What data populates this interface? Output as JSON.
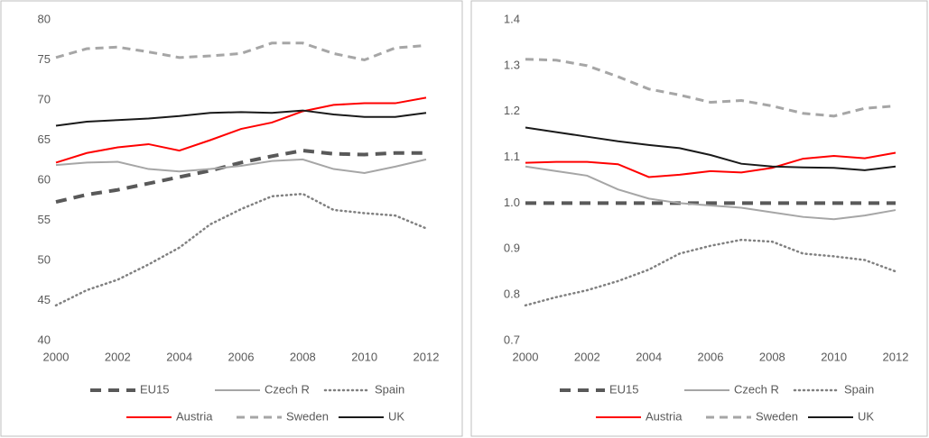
{
  "chart_data": [
    {
      "type": "line",
      "x": [
        2000,
        2001,
        2002,
        2003,
        2004,
        2005,
        2006,
        2007,
        2008,
        2009,
        2010,
        2011,
        2012
      ],
      "xlim": [
        2000,
        2012
      ],
      "xticks": [
        2000,
        2002,
        2004,
        2006,
        2008,
        2010,
        2012
      ],
      "ylim": [
        40,
        80
      ],
      "yticks": [
        40,
        45,
        50,
        55,
        60,
        65,
        70,
        75,
        80
      ],
      "grid": false,
      "series": [
        {
          "name": "EU15",
          "color": "#595959",
          "dash": "dashed",
          "width": 4,
          "values": [
            57.3,
            58.2,
            58.8,
            59.6,
            60.4,
            61.2,
            62.2,
            63.0,
            63.7,
            63.3,
            63.2,
            63.4,
            63.4
          ]
        },
        {
          "name": "Czech R",
          "color": "#a6a6a6",
          "dash": "solid",
          "width": 2,
          "values": [
            61.9,
            62.2,
            62.3,
            61.4,
            61.1,
            61.4,
            61.8,
            62.4,
            62.6,
            61.4,
            60.9,
            61.7,
            62.6
          ]
        },
        {
          "name": "Spain",
          "color": "#808080",
          "dash": "dotted",
          "width": 2.5,
          "values": [
            44.4,
            46.3,
            47.6,
            49.5,
            51.6,
            54.5,
            56.4,
            58.0,
            58.3,
            56.3,
            55.9,
            55.6,
            54.0
          ]
        },
        {
          "name": "Austria",
          "color": "#ff0000",
          "dash": "solid",
          "width": 2,
          "values": [
            62.2,
            63.4,
            64.1,
            64.5,
            63.7,
            65.0,
            66.4,
            67.2,
            68.6,
            69.4,
            69.6,
            69.6,
            70.3
          ]
        },
        {
          "name": "Sweden",
          "color": "#a6a6a6",
          "dash": "dashed",
          "width": 3,
          "values": [
            75.3,
            76.4,
            76.6,
            76.0,
            75.3,
            75.5,
            75.8,
            77.1,
            77.1,
            75.8,
            75.0,
            76.5,
            76.8
          ]
        },
        {
          "name": "UK",
          "color": "#1a1a1a",
          "dash": "solid",
          "width": 2,
          "values": [
            66.8,
            67.3,
            67.5,
            67.7,
            68.0,
            68.4,
            68.5,
            68.4,
            68.7,
            68.2,
            67.9,
            67.9,
            68.4
          ]
        }
      ]
    },
    {
      "type": "line",
      "x": [
        2000,
        2001,
        2002,
        2003,
        2004,
        2005,
        2006,
        2007,
        2008,
        2009,
        2010,
        2011,
        2012
      ],
      "xlim": [
        2000,
        2012
      ],
      "xticks": [
        2000,
        2002,
        2004,
        2006,
        2008,
        2010,
        2012
      ],
      "ylim": [
        0.7,
        1.4
      ],
      "yticks": [
        0.7,
        0.8,
        0.9,
        {
          "value": 1,
          "label": "1.0"
        },
        1.1,
        1.2,
        1.3,
        1.4
      ],
      "grid": false,
      "series": [
        {
          "name": "EU15",
          "color": "#595959",
          "dash": "dashed",
          "width": 4,
          "values": [
            1,
            1,
            1,
            1,
            1,
            1,
            1,
            1,
            1,
            1,
            1,
            1,
            1
          ]
        },
        {
          "name": "Czech R",
          "color": "#a6a6a6",
          "dash": "solid",
          "width": 2,
          "values": [
            1.08,
            1.07,
            1.06,
            1.03,
            1.01,
            1.0,
            0.995,
            0.99,
            0.98,
            0.97,
            0.965,
            0.973,
            0.985
          ]
        },
        {
          "name": "Spain",
          "color": "#808080",
          "dash": "dotted",
          "width": 2.5,
          "values": [
            0.777,
            0.795,
            0.81,
            0.83,
            0.855,
            0.89,
            0.907,
            0.92,
            0.916,
            0.89,
            0.884,
            0.876,
            0.851
          ]
        },
        {
          "name": "Austria",
          "color": "#ff0000",
          "dash": "solid",
          "width": 2,
          "values": [
            1.088,
            1.09,
            1.09,
            1.085,
            1.057,
            1.062,
            1.07,
            1.067,
            1.077,
            1.097,
            1.103,
            1.098,
            1.11
          ]
        },
        {
          "name": "Sweden",
          "color": "#a6a6a6",
          "dash": "dashed",
          "width": 3,
          "values": [
            1.314,
            1.312,
            1.3,
            1.276,
            1.249,
            1.236,
            1.22,
            1.224,
            1.212,
            1.196,
            1.19,
            1.207,
            1.212
          ]
        },
        {
          "name": "UK",
          "color": "#1a1a1a",
          "dash": "solid",
          "width": 2,
          "values": [
            1.165,
            1.155,
            1.145,
            1.135,
            1.127,
            1.12,
            1.105,
            1.086,
            1.08,
            1.078,
            1.077,
            1.072,
            1.08
          ]
        }
      ]
    }
  ]
}
